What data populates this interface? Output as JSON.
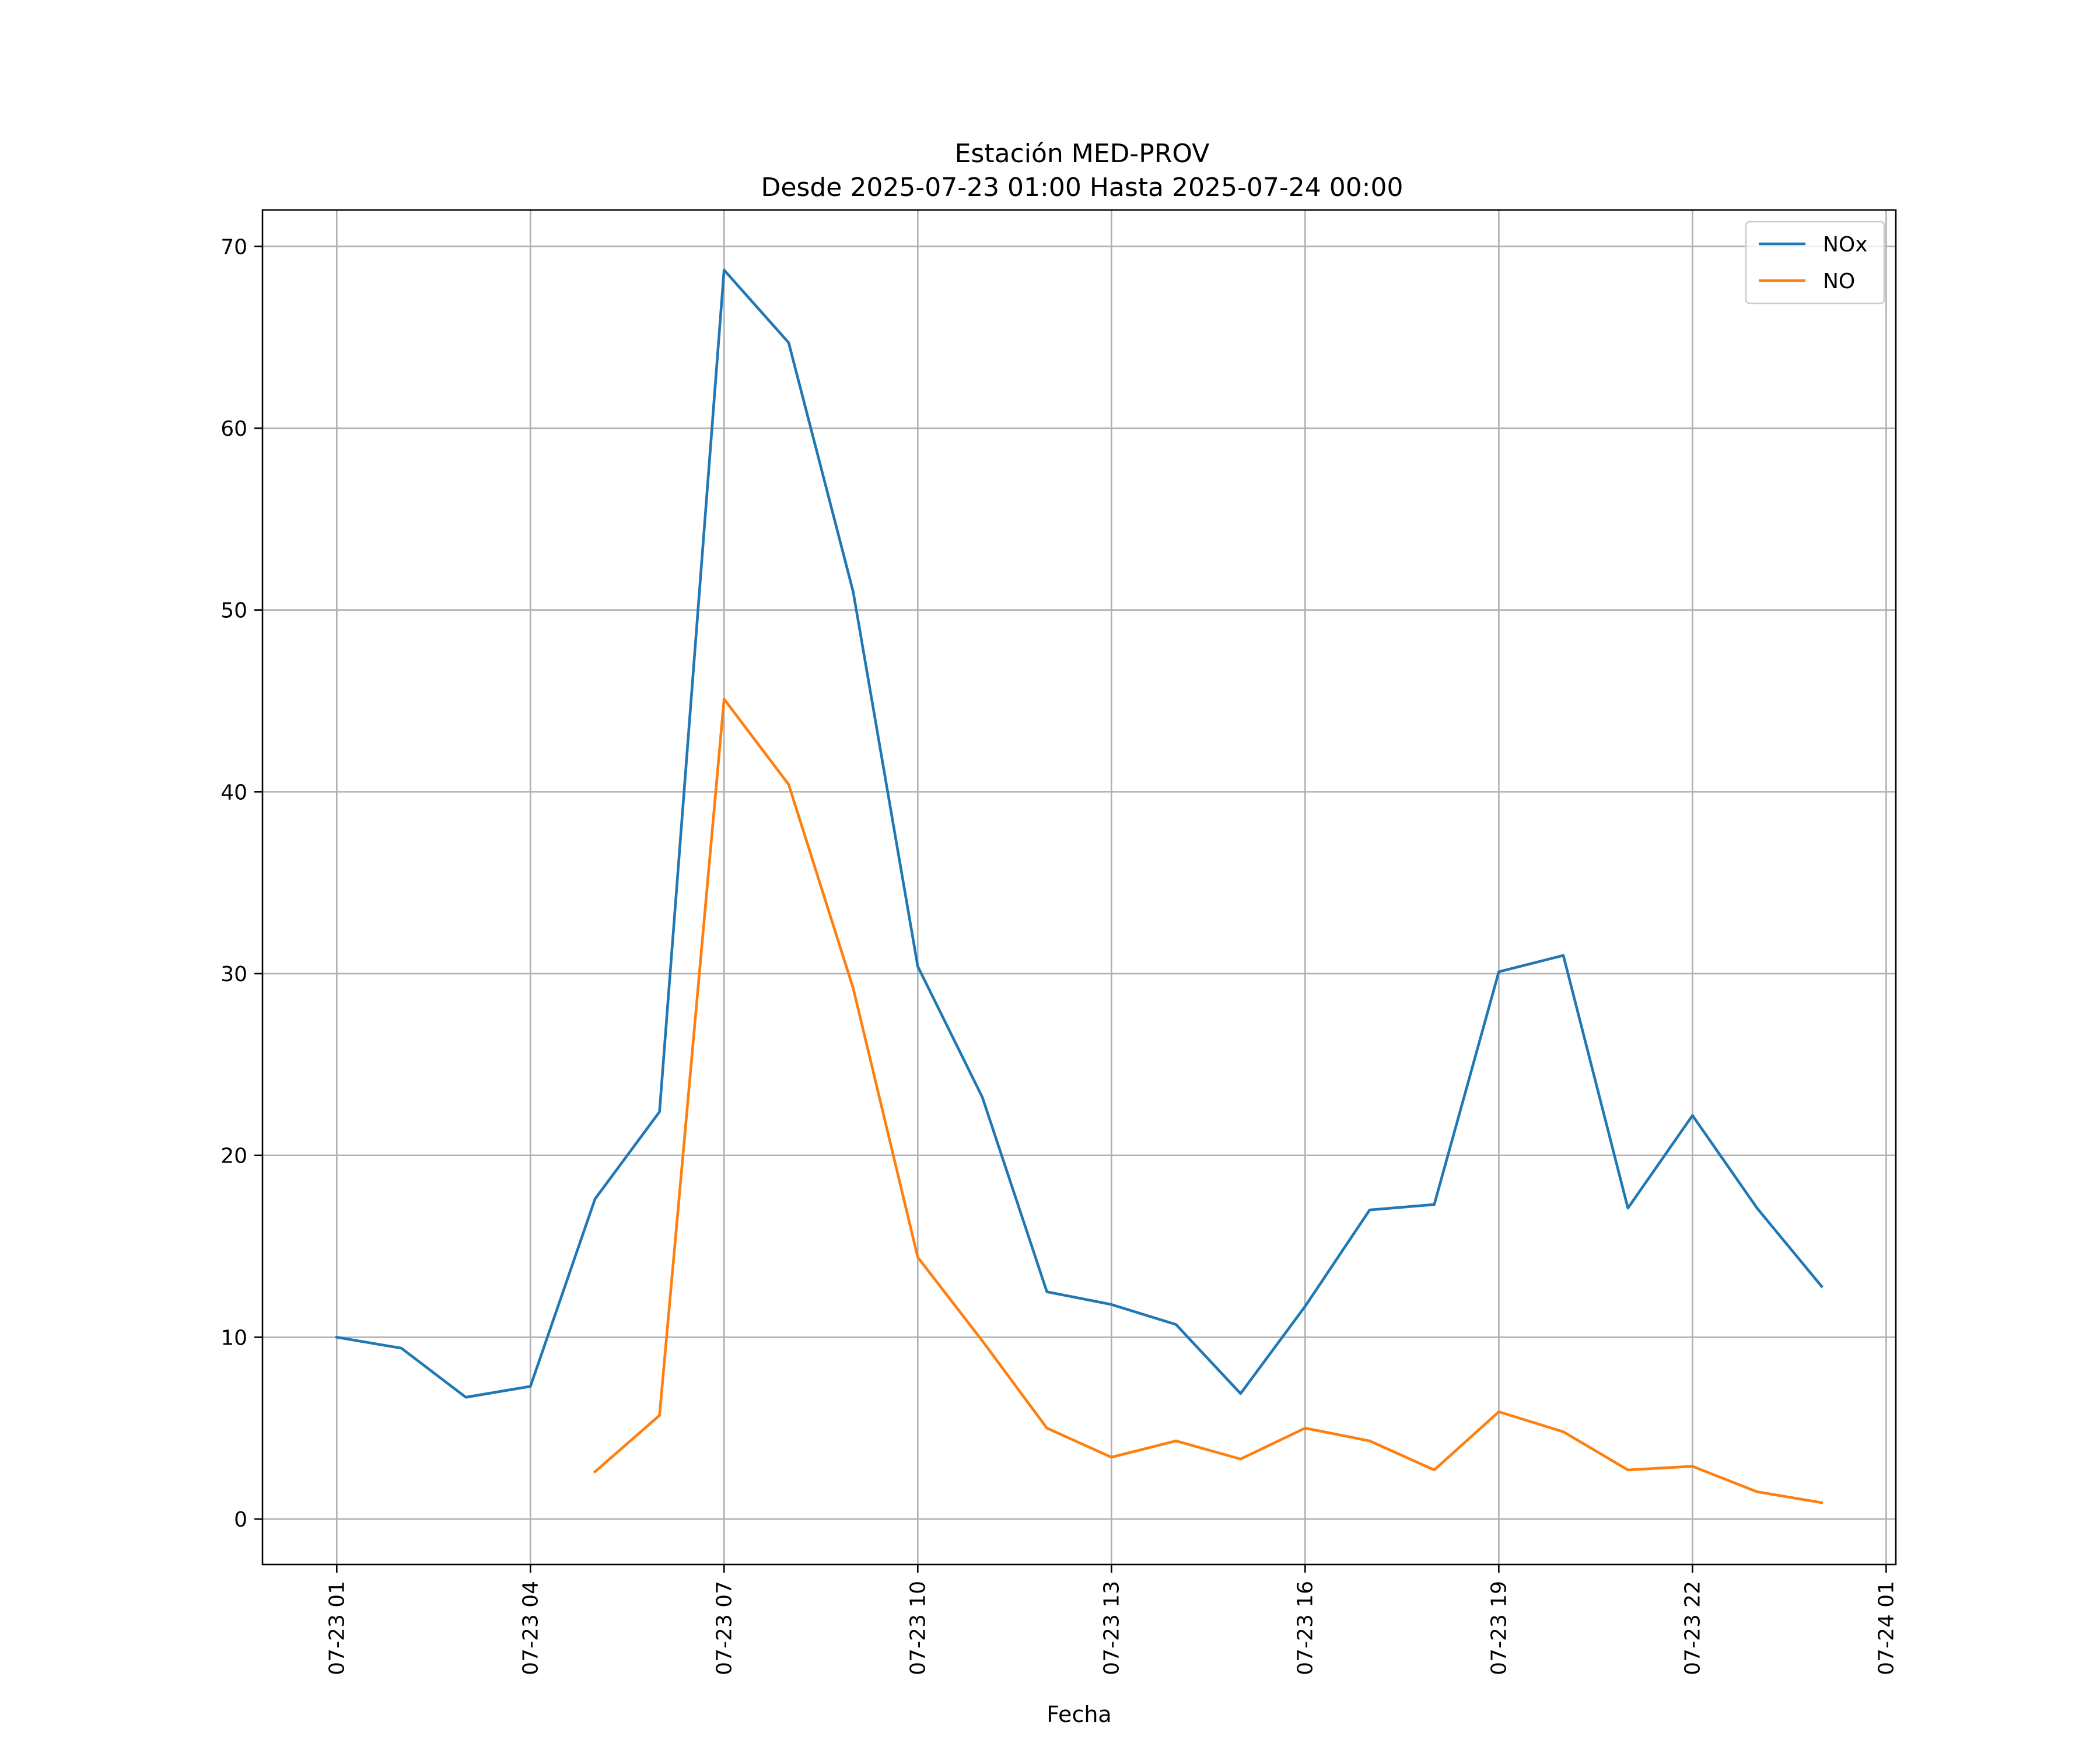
{
  "chart_data": {
    "type": "line",
    "title": "Estación MED-PROV",
    "subtitle": "Desde 2025-07-23 01:00 Hasta 2025-07-24 00:00",
    "xlabel": "Fecha",
    "ylabel": "",
    "x": [
      "2025-07-23 01:00",
      "2025-07-23 02:00",
      "2025-07-23 03:00",
      "2025-07-23 04:00",
      "2025-07-23 05:00",
      "2025-07-23 06:00",
      "2025-07-23 07:00",
      "2025-07-23 08:00",
      "2025-07-23 09:00",
      "2025-07-23 10:00",
      "2025-07-23 11:00",
      "2025-07-23 12:00",
      "2025-07-23 13:00",
      "2025-07-23 14:00",
      "2025-07-23 15:00",
      "2025-07-23 16:00",
      "2025-07-23 17:00",
      "2025-07-23 18:00",
      "2025-07-23 19:00",
      "2025-07-23 20:00",
      "2025-07-23 21:00",
      "2025-07-23 22:00",
      "2025-07-23 23:00",
      "2025-07-24 00:00"
    ],
    "series": [
      {
        "name": "NOx",
        "color": "#1f77b4",
        "values": [
          10.0,
          9.4,
          6.7,
          7.3,
          17.6,
          22.4,
          68.7,
          64.7,
          51.0,
          30.4,
          23.2,
          12.5,
          11.8,
          10.7,
          6.9,
          11.7,
          17.0,
          17.3,
          30.1,
          31.0,
          17.1,
          22.2,
          17.1,
          12.8
        ]
      },
      {
        "name": "NO",
        "color": "#ff7f0e",
        "values": [
          null,
          null,
          null,
          null,
          2.6,
          5.7,
          45.1,
          40.4,
          29.2,
          14.4,
          9.8,
          5.0,
          3.4,
          4.3,
          3.3,
          5.0,
          4.3,
          2.7,
          5.9,
          4.8,
          2.7,
          2.9,
          1.5,
          0.9
        ]
      }
    ],
    "xticks": [
      "07-23 01",
      "07-23 04",
      "07-23 07",
      "07-23 10",
      "07-23 13",
      "07-23 16",
      "07-23 19",
      "07-23 22",
      "07-24 01"
    ],
    "xlim": [
      "2025-07-22 23:51",
      "2025-07-24 01:09"
    ],
    "yticks": [
      0,
      10,
      20,
      30,
      40,
      50,
      60,
      70
    ],
    "ylim": [
      -2.5,
      72
    ],
    "grid": true,
    "legend_position": "top-right"
  }
}
